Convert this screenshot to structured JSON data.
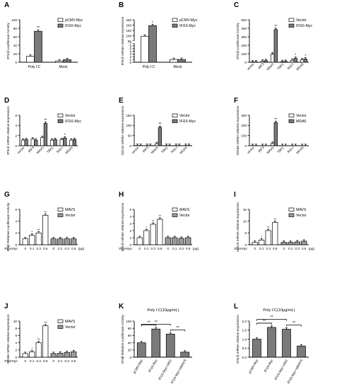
{
  "figure": {
    "colors": {
      "white_fill": "#ffffff",
      "dark_fill": "#7a7a7a",
      "mid_fill": "#9a9a9a",
      "axis": "#000000"
    }
  },
  "chart_data": [
    {
      "letter": "A",
      "type": "bar",
      "ylabel": "IFN-β Luciferase Activity",
      "ylim": [
        0,
        100
      ],
      "yticks": [
        "0",
        "20",
        "40",
        "60",
        "80",
        "100"
      ],
      "groups": [
        "Poly I:C",
        "Mock"
      ],
      "series": [
        {
          "name": "pCMV-Myc",
          "fill": "#ffffff",
          "values": [
            14,
            3
          ]
        },
        {
          "name": "IFI16-Myc",
          "fill": "#7a7a7a",
          "values": [
            73,
            6
          ]
        }
      ],
      "sig": [
        {
          "series": 1,
          "group": 0,
          "text": "**"
        }
      ]
    },
    {
      "letter": "B",
      "type": "bar",
      "ylabel": "IFN-β mRNA relative expression",
      "ylim": [
        0,
        250
      ],
      "yticks": [
        "0",
        "1",
        "2",
        "3",
        "4",
        "5",
        "6",
        "7",
        "50",
        "100",
        "150",
        "200",
        "250"
      ],
      "groups": [
        "Poly I:C",
        "Mock"
      ],
      "series": [
        {
          "name": "pCMV-Myc",
          "fill": "#ffffff",
          "values": [
            95,
            1
          ]
        },
        {
          "name": "IFI16-Myc",
          "fill": "#7a7a7a",
          "values": [
            195,
            1
          ]
        }
      ],
      "sig": [
        {
          "series": 1,
          "group": 0,
          "text": "*"
        }
      ]
    },
    {
      "letter": "C",
      "type": "bar",
      "ylabel": "IFN-β Luciferase Activity",
      "ylim": [
        0,
        500
      ],
      "yticks": [
        "0",
        "100",
        "200",
        "300",
        "400",
        "500"
      ],
      "groups": [
        "vector",
        "IRF3",
        "MAVS",
        "TBK1",
        "RIG-I",
        "MDA5"
      ],
      "series": [
        {
          "name": "Vector",
          "fill": "#ffffff",
          "values": [
            4,
            12,
            95,
            7,
            22,
            28
          ]
        },
        {
          "name": "IFI16-Myc",
          "fill": "#7a7a7a",
          "values": [
            4,
            18,
            385,
            10,
            45,
            38
          ]
        }
      ],
      "sig": [
        {
          "series": 1,
          "group": 2,
          "text": "**"
        },
        {
          "series": 1,
          "group": 4,
          "text": "*"
        },
        {
          "series": 1,
          "group": 5,
          "text": "*"
        }
      ]
    },
    {
      "letter": "D",
      "type": "bar",
      "ylabel": "IFN-β mRNA relative expression",
      "ylim": [
        0,
        6
      ],
      "yticks": [
        "0",
        "2",
        "4",
        "6"
      ],
      "groups": [
        "vector",
        "IRF3",
        "MAVS",
        "TBK1",
        "RIG-I",
        "MDA5"
      ],
      "series": [
        {
          "name": "Vector",
          "fill": "#ffffff",
          "values": [
            1.1,
            1.3,
            1.6,
            1.1,
            1.2,
            1.1
          ]
        },
        {
          "name": "IFI16-Myc",
          "fill": "#7a7a7a",
          "values": [
            1.2,
            1.1,
            4.4,
            1.2,
            1.5,
            1.2
          ]
        }
      ],
      "sig": [
        {
          "series": 1,
          "group": 2,
          "text": "**"
        },
        {
          "series": 1,
          "group": 4,
          "text": "*"
        }
      ]
    },
    {
      "letter": "E",
      "type": "bar",
      "ylabel": "ISG15 mRNA relative expression",
      "ylim": [
        0,
        150
      ],
      "yticks": [
        "0",
        "50",
        "100",
        "150"
      ],
      "groups": [
        "vector",
        "IRF3",
        "MAVS",
        "TBK1",
        "RIG-I",
        "MDA5"
      ],
      "series": [
        {
          "name": "Vector",
          "fill": "#ffffff",
          "values": [
            1,
            1,
            10,
            1,
            1,
            1
          ]
        },
        {
          "name": "IFI16-Myc",
          "fill": "#7a7a7a",
          "values": [
            1,
            1,
            90,
            1,
            1,
            1
          ]
        }
      ],
      "sig": [
        {
          "series": 1,
          "group": 2,
          "text": "**"
        }
      ]
    },
    {
      "letter": "F",
      "type": "bar",
      "ylabel": "ISG56 mRNA relative expression",
      "ylim": [
        0,
        300
      ],
      "yticks": [
        "0",
        "100",
        "200",
        "300"
      ],
      "groups": [
        "vector",
        "IRF3",
        "MAVS",
        "TBK1",
        "RIG-I",
        "MDA5"
      ],
      "series": [
        {
          "name": "Vector",
          "fill": "#ffffff",
          "values": [
            1,
            1,
            22,
            1,
            1,
            1
          ]
        },
        {
          "name": "MDA5",
          "fill": "#7a7a7a",
          "values": [
            1,
            1,
            228,
            1,
            1,
            1
          ]
        }
      ],
      "sig": [
        {
          "series": 1,
          "group": 2,
          "text": "**"
        }
      ]
    },
    {
      "letter": "G",
      "type": "dose",
      "ylabel": "IFNβ Relative Luciferase Activity",
      "ylim": [
        0,
        6
      ],
      "yticks": [
        "0",
        "2",
        "4",
        "6"
      ],
      "prefix": "IFI16-Myc",
      "unit": "(μg)",
      "doses": [
        "0",
        "0.1",
        "0.3",
        "0.5"
      ],
      "series": [
        {
          "name": "MAVS",
          "fill": "#ffffff",
          "values": [
            1.0,
            1.6,
            2.0,
            5.0
          ]
        },
        {
          "name": "Vector",
          "fill": "#9a9a9a",
          "values": [
            1.0,
            1.0,
            1.0,
            1.0
          ]
        }
      ],
      "sig": [
        "",
        "*",
        "**",
        "**"
      ]
    },
    {
      "letter": "H",
      "type": "dose",
      "ylabel": "IFN-β mRNA relative expression",
      "ylim": [
        0,
        5
      ],
      "yticks": [
        "0",
        "1",
        "2",
        "3",
        "4",
        "5"
      ],
      "prefix": "IFI16-Myc",
      "unit": "(μg)",
      "doses": [
        "0",
        "0.1",
        "0.3",
        "0.5"
      ],
      "series": [
        {
          "name": "MAVS",
          "fill": "#ffffff",
          "values": [
            1.0,
            2.0,
            2.9,
            3.6
          ]
        },
        {
          "name": "Vector",
          "fill": "#9a9a9a",
          "values": [
            1.0,
            1.0,
            0.9,
            1.0
          ]
        }
      ],
      "sig": [
        "",
        "*",
        "**",
        "**"
      ]
    },
    {
      "letter": "I",
      "type": "dose",
      "ylabel": "ISG15 mRNA relative expression",
      "ylim": [
        0,
        15
      ],
      "yticks": [
        "0",
        "5",
        "10",
        "15"
      ],
      "prefix": "IFI16-Myc",
      "unit": "(μg)",
      "doses": [
        "0",
        "0.1",
        "0.3",
        "0.5"
      ],
      "series": [
        {
          "name": "MAVS",
          "fill": "#ffffff",
          "values": [
            1.0,
            2.0,
            6.0,
            9.5
          ]
        },
        {
          "name": "Vector",
          "fill": "#9a9a9a",
          "values": [
            1.0,
            1.0,
            1.2,
            1.5
          ]
        }
      ],
      "sig": [
        "",
        "*",
        "**",
        "**"
      ]
    },
    {
      "letter": "J",
      "type": "dose",
      "ylabel": "ISG56 mRNA relative expression",
      "ylim": [
        0,
        10
      ],
      "yticks": [
        "0",
        "2",
        "4",
        "6",
        "8",
        "10"
      ],
      "prefix": "IFI16-Myc",
      "unit": "",
      "doses": [
        "0",
        "0.1",
        "0.3",
        "0.5"
      ],
      "series": [
        {
          "name": "MAVS",
          "fill": "#ffffff",
          "values": [
            1.0,
            1.5,
            4.0,
            8.7
          ]
        },
        {
          "name": "Vector",
          "fill": "#9a9a9a",
          "values": [
            1.0,
            1.1,
            1.3,
            1.5
          ]
        }
      ],
      "sig": [
        "",
        "*",
        "**",
        "**"
      ]
    },
    {
      "letter": "K",
      "type": "single",
      "title": "Poly I:C(10μg/mL)",
      "ylabel": "IFNβ Relative Luciferase Activity",
      "ylim": [
        0,
        100
      ],
      "yticks": [
        "0",
        "20",
        "40",
        "60",
        "80",
        "100"
      ],
      "categories": [
        "pCMV-Myc",
        "IFI16-Myc",
        "IFI16-Myc+siNC",
        "IFI16-Myc+siMAVS"
      ],
      "values": [
        40,
        78,
        64,
        14
      ],
      "fill": "#7a7a7a",
      "brackets": [
        {
          "from": 0,
          "to": 1,
          "level": 0,
          "text": "**"
        },
        {
          "from": 0,
          "to": 2,
          "level": 1,
          "text": "**"
        },
        {
          "from": 2,
          "to": 3,
          "level": 0,
          "text": "**"
        }
      ]
    },
    {
      "letter": "L",
      "type": "single",
      "title": "Poly I:C(10μg/mL)",
      "ylabel": "IFN-β mRNA relative expression",
      "ylim": [
        0,
        2
      ],
      "yticks": [
        "0.0",
        "0.5",
        "1.0",
        "1.5",
        "2.0"
      ],
      "categories": [
        "pCMV-Myc",
        "IFI16-Myc",
        "IFI16-Myc+siNC",
        "IFI16-Myc+siMAVS"
      ],
      "values": [
        1.0,
        1.65,
        1.55,
        0.62
      ],
      "fill": "#7a7a7a",
      "brackets": [
        {
          "from": 0,
          "to": 1,
          "level": 0,
          "text": "**"
        },
        {
          "from": 0,
          "to": 2,
          "level": 1,
          "text": "**"
        },
        {
          "from": 2,
          "to": 3,
          "level": 0,
          "text": "**"
        }
      ]
    }
  ]
}
